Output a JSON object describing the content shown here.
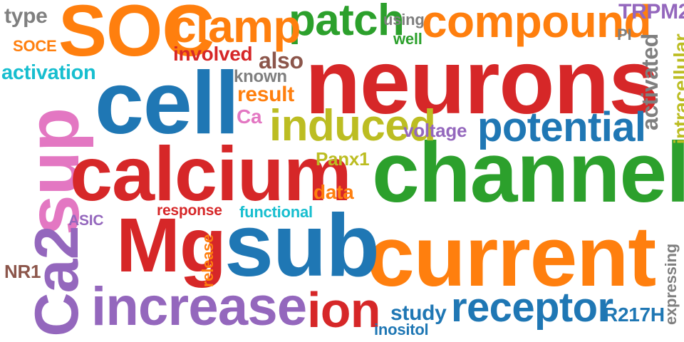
{
  "palette": {
    "red": "#d62728",
    "blue": "#1f77b4",
    "green": "#2ca02c",
    "orange": "#ff7f0e",
    "purple": "#9467bd",
    "pink": "#e377c2",
    "olive": "#bcbd22",
    "teal": "#17becf",
    "brown": "#8c564b",
    "gray": "#7f7f7f"
  },
  "words": [
    {
      "id": "neurons",
      "text": "neurons",
      "color": "red"
    },
    {
      "id": "channel",
      "text": "channel",
      "color": "green"
    },
    {
      "id": "current",
      "text": "current",
      "color": "orange"
    },
    {
      "id": "sub",
      "text": "sub",
      "color": "blue"
    },
    {
      "id": "sup",
      "text": "sup",
      "color": "pink"
    },
    {
      "id": "cell",
      "text": "cell",
      "color": "blue"
    },
    {
      "id": "calcium",
      "text": "calcium",
      "color": "red"
    },
    {
      "id": "soc",
      "text": "SOC",
      "color": "orange"
    },
    {
      "id": "ca2",
      "text": "Ca2",
      "color": "purple"
    },
    {
      "id": "mg",
      "text": "Mg",
      "color": "red"
    },
    {
      "id": "increase",
      "text": "increase",
      "color": "purple"
    },
    {
      "id": "compound",
      "text": "compound",
      "color": "orange"
    },
    {
      "id": "patch",
      "text": "patch",
      "color": "green"
    },
    {
      "id": "clamp",
      "text": "clamp",
      "color": "orange"
    },
    {
      "id": "induced",
      "text": "induced",
      "color": "olive"
    },
    {
      "id": "potential",
      "text": "potential",
      "color": "blue"
    },
    {
      "id": "receptor",
      "text": "receptor",
      "color": "blue"
    },
    {
      "id": "ion",
      "text": "ion",
      "color": "red"
    },
    {
      "id": "type",
      "text": "type",
      "color": "gray"
    },
    {
      "id": "soce",
      "text": "SOCE",
      "color": "orange"
    },
    {
      "id": "activation",
      "text": "activation",
      "color": "teal"
    },
    {
      "id": "involved",
      "text": "involved",
      "color": "red"
    },
    {
      "id": "also",
      "text": "also",
      "color": "brown"
    },
    {
      "id": "known",
      "text": "known",
      "color": "gray"
    },
    {
      "id": "result",
      "text": "result",
      "color": "orange"
    },
    {
      "id": "ca",
      "text": "Ca",
      "color": "pink"
    },
    {
      "id": "using",
      "text": "using",
      "color": "gray"
    },
    {
      "id": "well",
      "text": "well",
      "color": "green"
    },
    {
      "id": "trpm2",
      "text": "TRPM2",
      "color": "purple"
    },
    {
      "id": "pi",
      "text": "PI",
      "color": "gray"
    },
    {
      "id": "activated",
      "text": "activated",
      "color": "gray"
    },
    {
      "id": "intracellular",
      "text": "intracellular",
      "color": "olive"
    },
    {
      "id": "voltage",
      "text": "voltage",
      "color": "purple"
    },
    {
      "id": "panx1",
      "text": "Panx1",
      "color": "olive"
    },
    {
      "id": "data",
      "text": "data",
      "color": "orange"
    },
    {
      "id": "response",
      "text": "response",
      "color": "red"
    },
    {
      "id": "functional",
      "text": "functional",
      "color": "teal"
    },
    {
      "id": "asic",
      "text": "ASIC",
      "color": "purple"
    },
    {
      "id": "release",
      "text": "release",
      "color": "orange"
    },
    {
      "id": "nr1",
      "text": "NR1",
      "color": "brown"
    },
    {
      "id": "study",
      "text": "study",
      "color": "blue"
    },
    {
      "id": "inositol",
      "text": "inositol",
      "color": "blue"
    },
    {
      "id": "r217h",
      "text": "R217H",
      "color": "blue"
    },
    {
      "id": "expressing",
      "text": "expressing",
      "color": "gray"
    }
  ]
}
